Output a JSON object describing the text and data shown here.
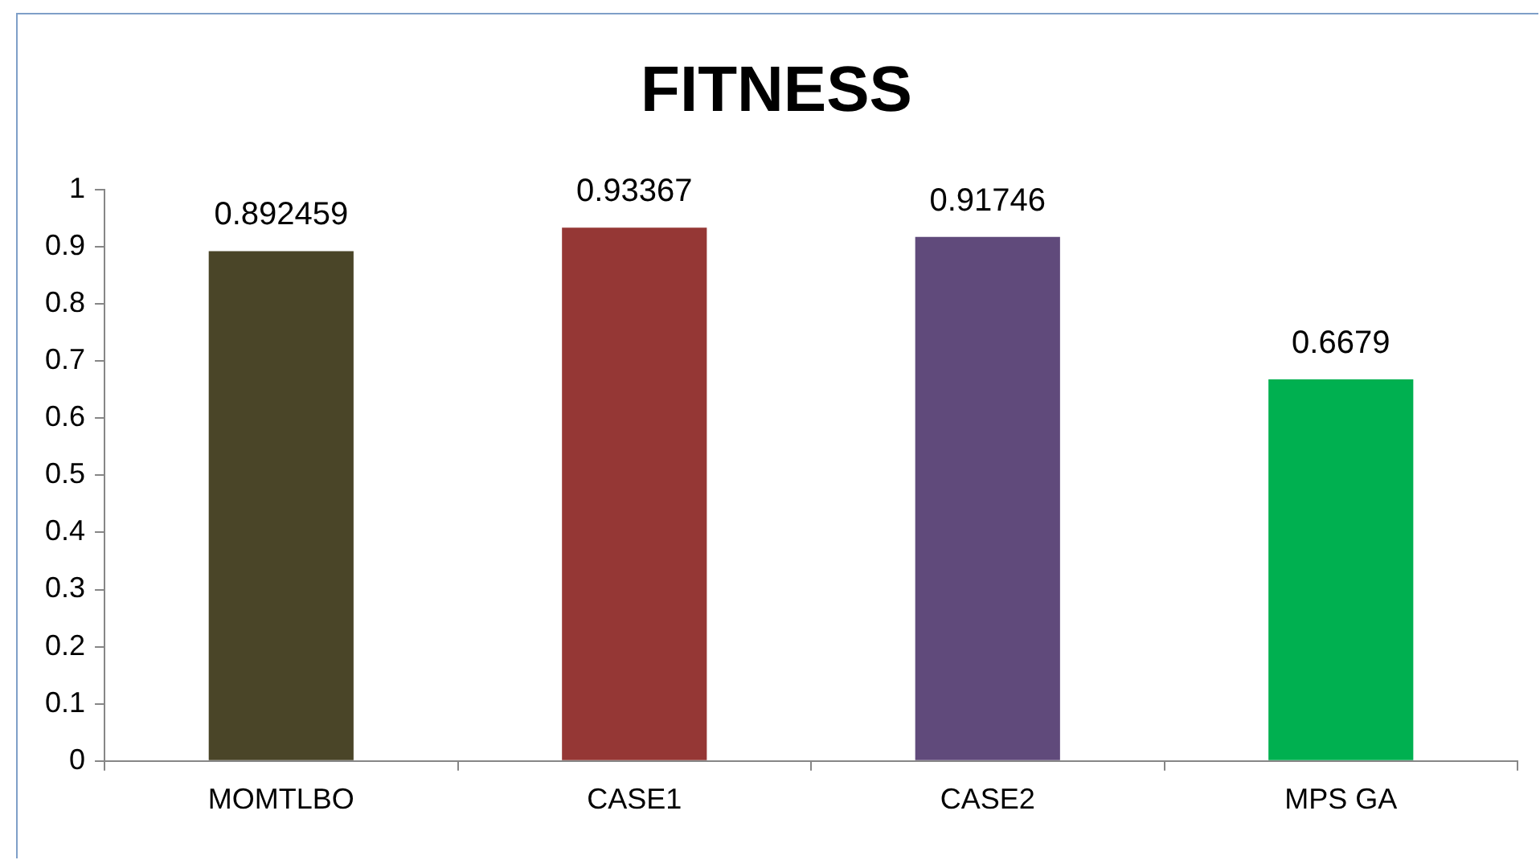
{
  "chart_data": {
    "type": "bar",
    "title": "FITNESS",
    "categories": [
      "MOMTLBO",
      "CASE1",
      "CASE2",
      "MPS GA"
    ],
    "values": [
      0.892459,
      0.93367,
      0.91746,
      0.6679
    ],
    "colors": [
      "#4a4528",
      "#953735",
      "#604a7b",
      "#00b050"
    ],
    "ylim": [
      0,
      1
    ],
    "yticks": [
      0,
      0.1,
      0.2,
      0.3,
      0.4,
      0.5,
      0.6,
      0.7,
      0.8,
      0.9,
      1
    ],
    "grid": false,
    "legend": false,
    "data_labels": true
  }
}
